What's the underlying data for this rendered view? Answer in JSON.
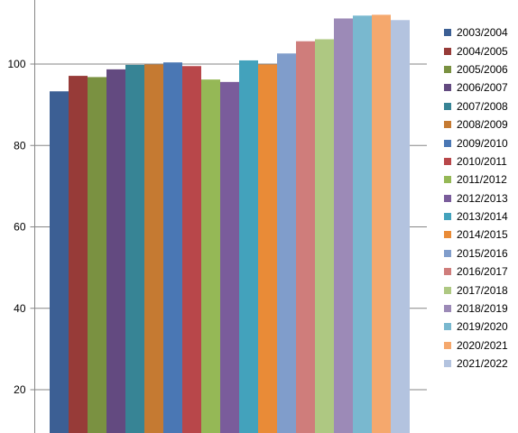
{
  "chart_data": {
    "type": "bar",
    "categories": [
      "2003/2004",
      "2004/2005",
      "2005/2006",
      "2006/2007",
      "2007/2008",
      "2008/2009",
      "2009/2010",
      "2010/2011",
      "2011/2012",
      "2012/2013",
      "2013/2014",
      "2014/2015",
      "2015/2016",
      "2016/2017",
      "2017/2018",
      "2018/2019",
      "2019/2020",
      "2020/2021",
      "2021/2022"
    ],
    "values": [
      93.3,
      97.1,
      96.8,
      98.7,
      99.8,
      99.9,
      100.4,
      99.5,
      96.2,
      95.6,
      100.9,
      99.9,
      102.6,
      105.6,
      106.1,
      111.2,
      111.9,
      112.1,
      110.8
    ],
    "colors": [
      "#3C5F94",
      "#973B38",
      "#7A9141",
      "#634A80",
      "#378495",
      "#C57A32",
      "#4A77B4",
      "#B8474A",
      "#95B856",
      "#7A5C9B",
      "#43A2BC",
      "#E98B37",
      "#809DCB",
      "#CF7D7B",
      "#AEC882",
      "#9C8AB7",
      "#79B8CF",
      "#F5A86D",
      "#B3C3DF"
    ],
    "title": "",
    "xlabel": "",
    "ylabel": "",
    "ylim": [
      5,
      125
    ],
    "yticks": [
      20,
      40,
      60,
      80,
      100
    ],
    "grid": true,
    "legend_position": "right"
  }
}
